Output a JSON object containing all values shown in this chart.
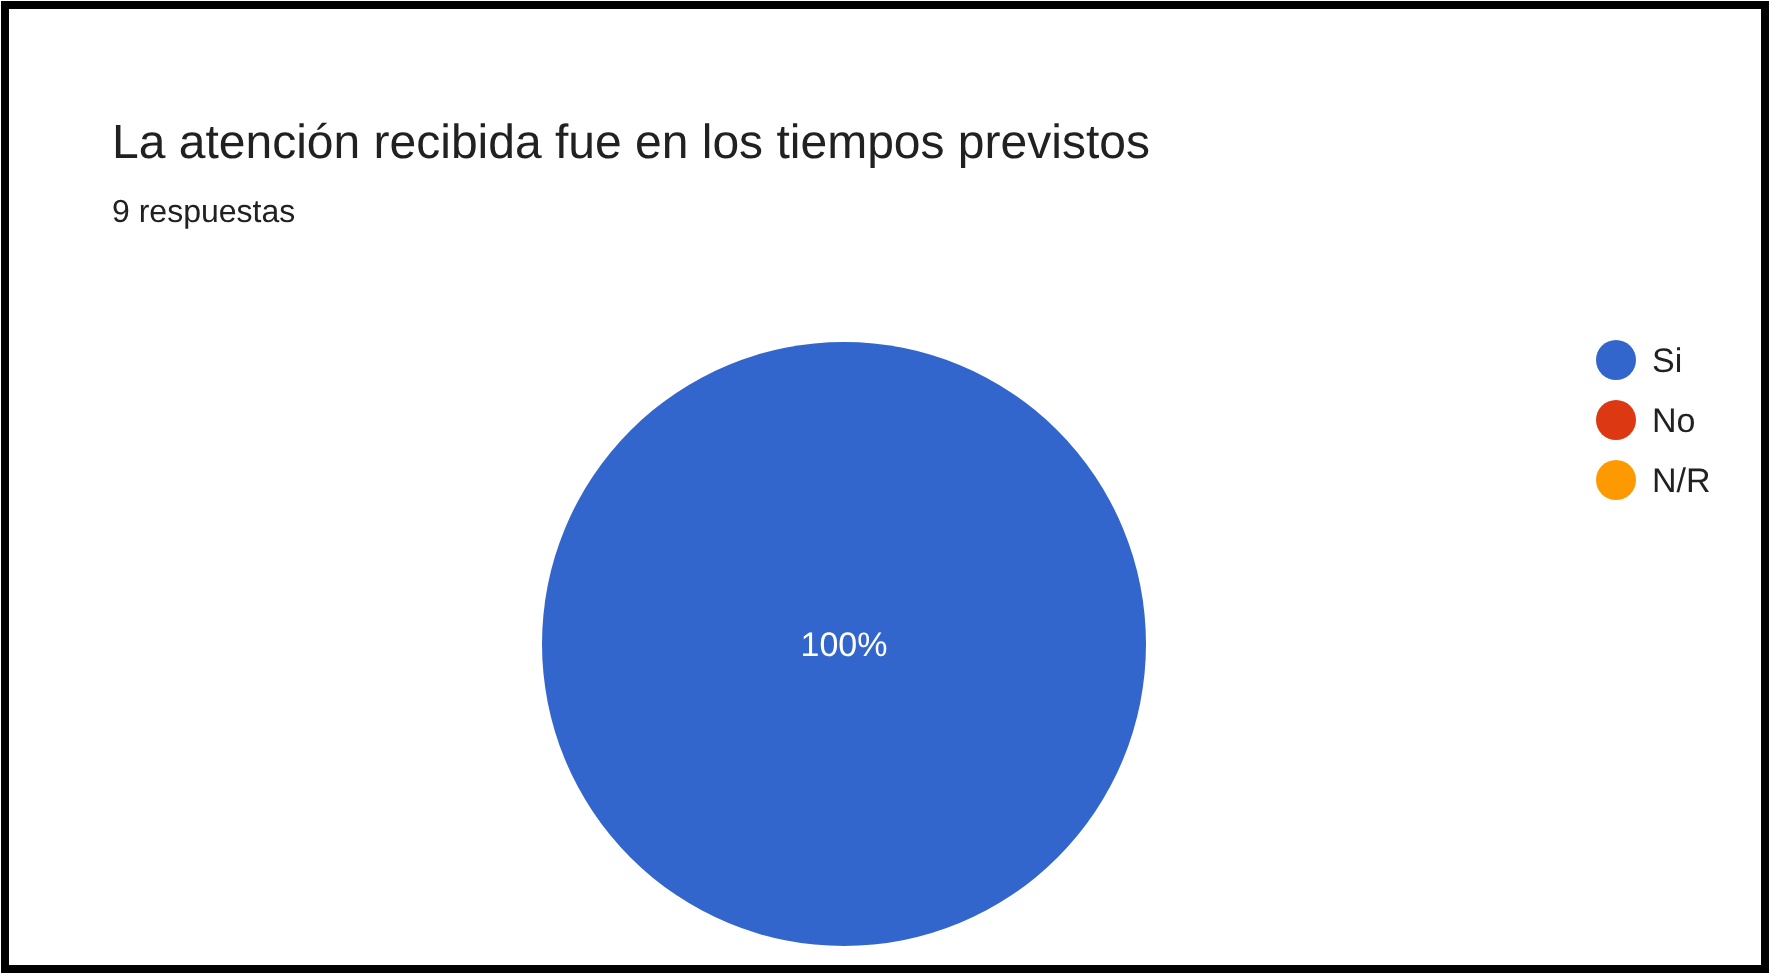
{
  "chart_data": {
    "type": "pie",
    "title": "La atención recibida fue en los tiempos previstos",
    "subtitle": "9 respuestas",
    "categories": [
      "Si",
      "No",
      "N/R"
    ],
    "values": [
      100,
      0,
      0
    ],
    "colors": [
      "#3366cc",
      "#dc3912",
      "#ff9900"
    ],
    "value_labels": [
      "100%",
      null,
      null
    ],
    "legend": "top right"
  }
}
